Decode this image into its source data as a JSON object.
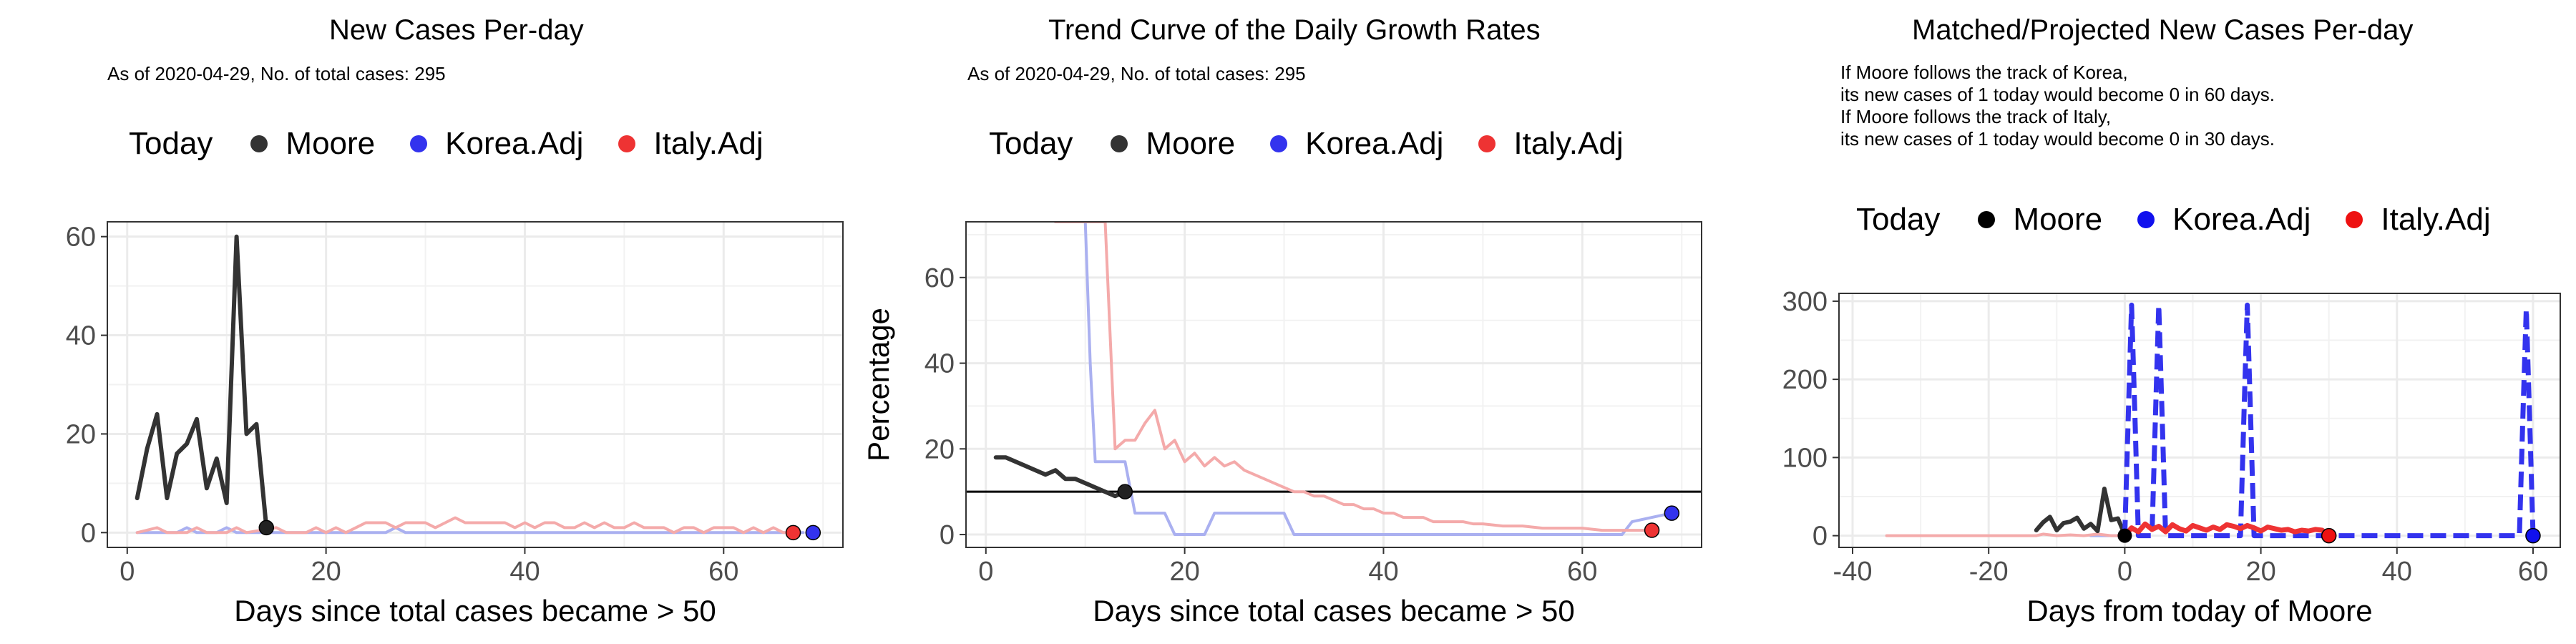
{
  "colors": {
    "moore": "#333333",
    "korea": "#3333ee",
    "italy": "#ee3333",
    "korea_faded": "#aab0f0",
    "italy_faded": "#f4aaaa",
    "grid": "#ebebeb",
    "axis_text": "#4d4d4d"
  },
  "legend": {
    "title": "Today",
    "items": [
      {
        "label": "Moore",
        "color": "#333333"
      },
      {
        "label": "Korea.Adj",
        "color": "#3333ee"
      },
      {
        "label": "Italy.Adj",
        "color": "#ee3333"
      }
    ]
  },
  "chart_data": [
    {
      "type": "line",
      "title": "New Cases Per-day",
      "subtitle": [
        "As of 2020-04-29, No. of total cases: 295"
      ],
      "xlabel": "Days since total cases became > 50",
      "ylabel": "",
      "xlim": [
        -2,
        72
      ],
      "ylim": [
        -3,
        63
      ],
      "xticks": [
        0,
        20,
        40,
        60
      ],
      "yticks": [
        0,
        20,
        40,
        60
      ],
      "grid": true,
      "legend_position": "top",
      "series": [
        {
          "name": "Korea.Adj",
          "color": "#aab0f0",
          "width": 4,
          "points": [
            [
              1,
              0
            ],
            [
              5,
              0
            ],
            [
              6,
              1
            ],
            [
              7,
              0
            ],
            [
              9,
              0
            ],
            [
              10,
              1
            ],
            [
              11,
              0
            ],
            [
              26,
              0
            ],
            [
              27,
              1
            ],
            [
              28,
              0
            ],
            [
              68,
              0
            ]
          ],
          "end": [
            69,
            0
          ]
        },
        {
          "name": "Italy.Adj",
          "color": "#f4aaaa",
          "width": 4,
          "points": [
            [
              1,
              0
            ],
            [
              3,
              1
            ],
            [
              4,
              0
            ],
            [
              6,
              0
            ],
            [
              7,
              1
            ],
            [
              8,
              0
            ],
            [
              10,
              0
            ],
            [
              11,
              1
            ],
            [
              12,
              0
            ],
            [
              15,
              1
            ],
            [
              16,
              0
            ],
            [
              18,
              0
            ],
            [
              19,
              1
            ],
            [
              20,
              0
            ],
            [
              21,
              1
            ],
            [
              22,
              0
            ],
            [
              23,
              1
            ],
            [
              24,
              2
            ],
            [
              26,
              2
            ],
            [
              27,
              1
            ],
            [
              28,
              2
            ],
            [
              29,
              2
            ],
            [
              30,
              2
            ],
            [
              31,
              1
            ],
            [
              32,
              2
            ],
            [
              33,
              3
            ],
            [
              34,
              2
            ],
            [
              35,
              2
            ],
            [
              36,
              2
            ],
            [
              37,
              2
            ],
            [
              38,
              2
            ],
            [
              39,
              1
            ],
            [
              40,
              2
            ],
            [
              41,
              1
            ],
            [
              42,
              2
            ],
            [
              43,
              2
            ],
            [
              44,
              1
            ],
            [
              45,
              1
            ],
            [
              46,
              2
            ],
            [
              47,
              1
            ],
            [
              48,
              2
            ],
            [
              49,
              1
            ],
            [
              50,
              1
            ],
            [
              51,
              2
            ],
            [
              52,
              1
            ],
            [
              53,
              1
            ],
            [
              54,
              1
            ],
            [
              55,
              0
            ],
            [
              56,
              1
            ],
            [
              57,
              1
            ],
            [
              58,
              0
            ],
            [
              59,
              1
            ],
            [
              60,
              1
            ],
            [
              61,
              1
            ],
            [
              62,
              0
            ],
            [
              63,
              1
            ],
            [
              64,
              0
            ],
            [
              65,
              1
            ],
            [
              66,
              0
            ],
            [
              67,
              0
            ]
          ],
          "end": [
            67,
            0
          ]
        },
        {
          "name": "Moore",
          "color": "#333333",
          "width": 6,
          "points": [
            [
              1,
              7
            ],
            [
              2,
              17
            ],
            [
              3,
              24
            ],
            [
              4,
              7
            ],
            [
              5,
              16
            ],
            [
              6,
              18
            ],
            [
              7,
              23
            ],
            [
              8,
              9
            ],
            [
              9,
              15
            ],
            [
              10,
              6
            ],
            [
              11,
              60
            ],
            [
              12,
              20
            ],
            [
              13,
              22
            ],
            [
              14,
              1
            ]
          ],
          "end": [
            14,
            1
          ]
        }
      ]
    },
    {
      "type": "line",
      "title": "Trend Curve of the Daily Growth Rates",
      "subtitle": [
        "As of 2020-04-29, No. of total cases: 295"
      ],
      "xlabel": "Days since total cases became > 50",
      "ylabel": "Percentage",
      "xlim": [
        -2,
        72
      ],
      "ylim": [
        -3,
        73
      ],
      "xticks": [
        0,
        20,
        40,
        60
      ],
      "yticks": [
        0,
        20,
        40,
        60
      ],
      "grid": true,
      "hline": 10,
      "legend_position": "top",
      "series": [
        {
          "name": "Korea.Adj",
          "color": "#aab0f0",
          "width": 4,
          "points": [
            [
              7,
              73
            ],
            [
              10,
              73
            ],
            [
              10.5,
              40
            ],
            [
              11,
              17
            ],
            [
              14,
              17
            ],
            [
              15,
              5
            ],
            [
              18,
              5
            ],
            [
              19,
              0
            ],
            [
              22,
              0
            ],
            [
              23,
              5
            ],
            [
              30,
              5
            ],
            [
              31,
              0
            ],
            [
              64,
              0
            ],
            [
              65,
              3
            ],
            [
              69,
              5
            ]
          ],
          "end": [
            69,
            5
          ]
        },
        {
          "name": "Italy.Adj",
          "color": "#f4aaaa",
          "width": 4,
          "points": [
            [
              7,
              73
            ],
            [
              12,
              73
            ],
            [
              13,
              20
            ],
            [
              14,
              22
            ],
            [
              15,
              22
            ],
            [
              16,
              26
            ],
            [
              17,
              29
            ],
            [
              18,
              20
            ],
            [
              19,
              22
            ],
            [
              20,
              17
            ],
            [
              21,
              19
            ],
            [
              22,
              16
            ],
            [
              23,
              18
            ],
            [
              24,
              16
            ],
            [
              25,
              17
            ],
            [
              26,
              15
            ],
            [
              27,
              14
            ],
            [
              28,
              13
            ],
            [
              29,
              12
            ],
            [
              30,
              11
            ],
            [
              31,
              10
            ],
            [
              32,
              10
            ],
            [
              33,
              9
            ],
            [
              34,
              9
            ],
            [
              35,
              8
            ],
            [
              36,
              7
            ],
            [
              37,
              7
            ],
            [
              38,
              6
            ],
            [
              39,
              6
            ],
            [
              40,
              5
            ],
            [
              41,
              5
            ],
            [
              42,
              4
            ],
            [
              43,
              4
            ],
            [
              44,
              4
            ],
            [
              45,
              3
            ],
            [
              46,
              3
            ],
            [
              47,
              3
            ],
            [
              48,
              3
            ],
            [
              49,
              2.5
            ],
            [
              50,
              2.5
            ],
            [
              52,
              2
            ],
            [
              54,
              2
            ],
            [
              56,
              1.5
            ],
            [
              58,
              1.5
            ],
            [
              60,
              1.5
            ],
            [
              62,
              1
            ],
            [
              64,
              1
            ],
            [
              66,
              1
            ],
            [
              67,
              1
            ]
          ],
          "end": [
            67,
            1
          ]
        },
        {
          "name": "Moore",
          "color": "#333333",
          "width": 6,
          "points": [
            [
              1,
              18
            ],
            [
              2,
              18
            ],
            [
              3,
              17
            ],
            [
              4,
              16
            ],
            [
              5,
              15
            ],
            [
              6,
              14
            ],
            [
              7,
              15
            ],
            [
              8,
              13
            ],
            [
              9,
              13
            ],
            [
              10,
              12
            ],
            [
              11,
              11
            ],
            [
              12,
              10
            ],
            [
              13,
              9
            ],
            [
              14,
              10
            ]
          ],
          "end": [
            14,
            10
          ]
        }
      ]
    },
    {
      "type": "line",
      "title": "Matched/Projected New Cases Per-day",
      "subtitle": [
        "If Moore follows the track of Korea,",
        "its new cases of 1 today would become 0 in 60 days.",
        "If Moore follows the track of Italy,",
        "its new cases of 1 today would become 0 in 30 days."
      ],
      "xlabel": "Days from today of Moore",
      "ylabel": "",
      "xlim": [
        -42,
        64
      ],
      "ylim": [
        -15,
        310
      ],
      "xticks": [
        -40,
        -20,
        0,
        20,
        40,
        60
      ],
      "yticks": [
        0,
        100,
        200,
        300
      ],
      "grid": true,
      "legend_position": "top",
      "series": [
        {
          "name": "Korea.Adj",
          "color": "#aab0f0",
          "width": 4,
          "points": [
            [
              -5,
              0
            ],
            [
              0,
              0
            ]
          ]
        },
        {
          "name": "Italy.Adj",
          "color": "#f4aaaa",
          "width": 4,
          "points": [
            [
              -35,
              0
            ],
            [
              -13,
              0
            ],
            [
              -12,
              2
            ],
            [
              -10,
              0
            ],
            [
              -8,
              1
            ],
            [
              -6,
              0
            ],
            [
              -4,
              2
            ],
            [
              -2,
              0
            ],
            [
              0,
              0
            ]
          ]
        },
        {
          "name": "Moore",
          "color": "#333333",
          "width": 6,
          "points": [
            [
              -13,
              7
            ],
            [
              -12,
              17
            ],
            [
              -11,
              24
            ],
            [
              -10,
              7
            ],
            [
              -9,
              16
            ],
            [
              -8,
              18
            ],
            [
              -7,
              23
            ],
            [
              -6,
              9
            ],
            [
              -5,
              15
            ],
            [
              -4,
              6
            ],
            [
              -3,
              60
            ],
            [
              -2,
              20
            ],
            [
              -1,
              22
            ],
            [
              0,
              1
            ]
          ]
        },
        {
          "name": "Korea.Adj",
          "color": "#3333ee",
          "width": 7,
          "dashed": true,
          "points": [
            [
              0,
              0
            ],
            [
              0.5,
              150
            ],
            [
              1,
              295
            ],
            [
              1.5,
              150
            ],
            [
              2,
              0
            ],
            [
              4,
              0
            ],
            [
              4.5,
              150
            ],
            [
              5,
              295
            ],
            [
              5.5,
              150
            ],
            [
              6,
              0
            ],
            [
              17,
              0
            ],
            [
              17.5,
              150
            ],
            [
              18,
              295
            ],
            [
              18.5,
              150
            ],
            [
              19,
              0
            ],
            [
              58,
              0
            ],
            [
              58.5,
              150
            ],
            [
              59,
              290
            ],
            [
              59.5,
              150
            ],
            [
              60,
              0
            ]
          ],
          "end": [
            60,
            0
          ]
        },
        {
          "name": "Italy.Adj",
          "color": "#ee3333",
          "width": 7,
          "points": [
            [
              0,
              0
            ],
            [
              1,
              10
            ],
            [
              2,
              5
            ],
            [
              3,
              15
            ],
            [
              4,
              8
            ],
            [
              5,
              12
            ],
            [
              6,
              5
            ],
            [
              7,
              14
            ],
            [
              8,
              9
            ],
            [
              9,
              6
            ],
            [
              10,
              13
            ],
            [
              11,
              10
            ],
            [
              12,
              7
            ],
            [
              13,
              11
            ],
            [
              14,
              8
            ],
            [
              15,
              14
            ],
            [
              16,
              12
            ],
            [
              17,
              9
            ],
            [
              18,
              13
            ],
            [
              19,
              10
            ],
            [
              20,
              6
            ],
            [
              21,
              11
            ],
            [
              22,
              9
            ],
            [
              23,
              7
            ],
            [
              24,
              8
            ],
            [
              25,
              5
            ],
            [
              26,
              7
            ],
            [
              27,
              6
            ],
            [
              28,
              8
            ],
            [
              29,
              7
            ],
            [
              30,
              0
            ]
          ],
          "end": [
            30,
            0
          ]
        }
      ],
      "today_point": [
        0,
        0
      ]
    }
  ]
}
